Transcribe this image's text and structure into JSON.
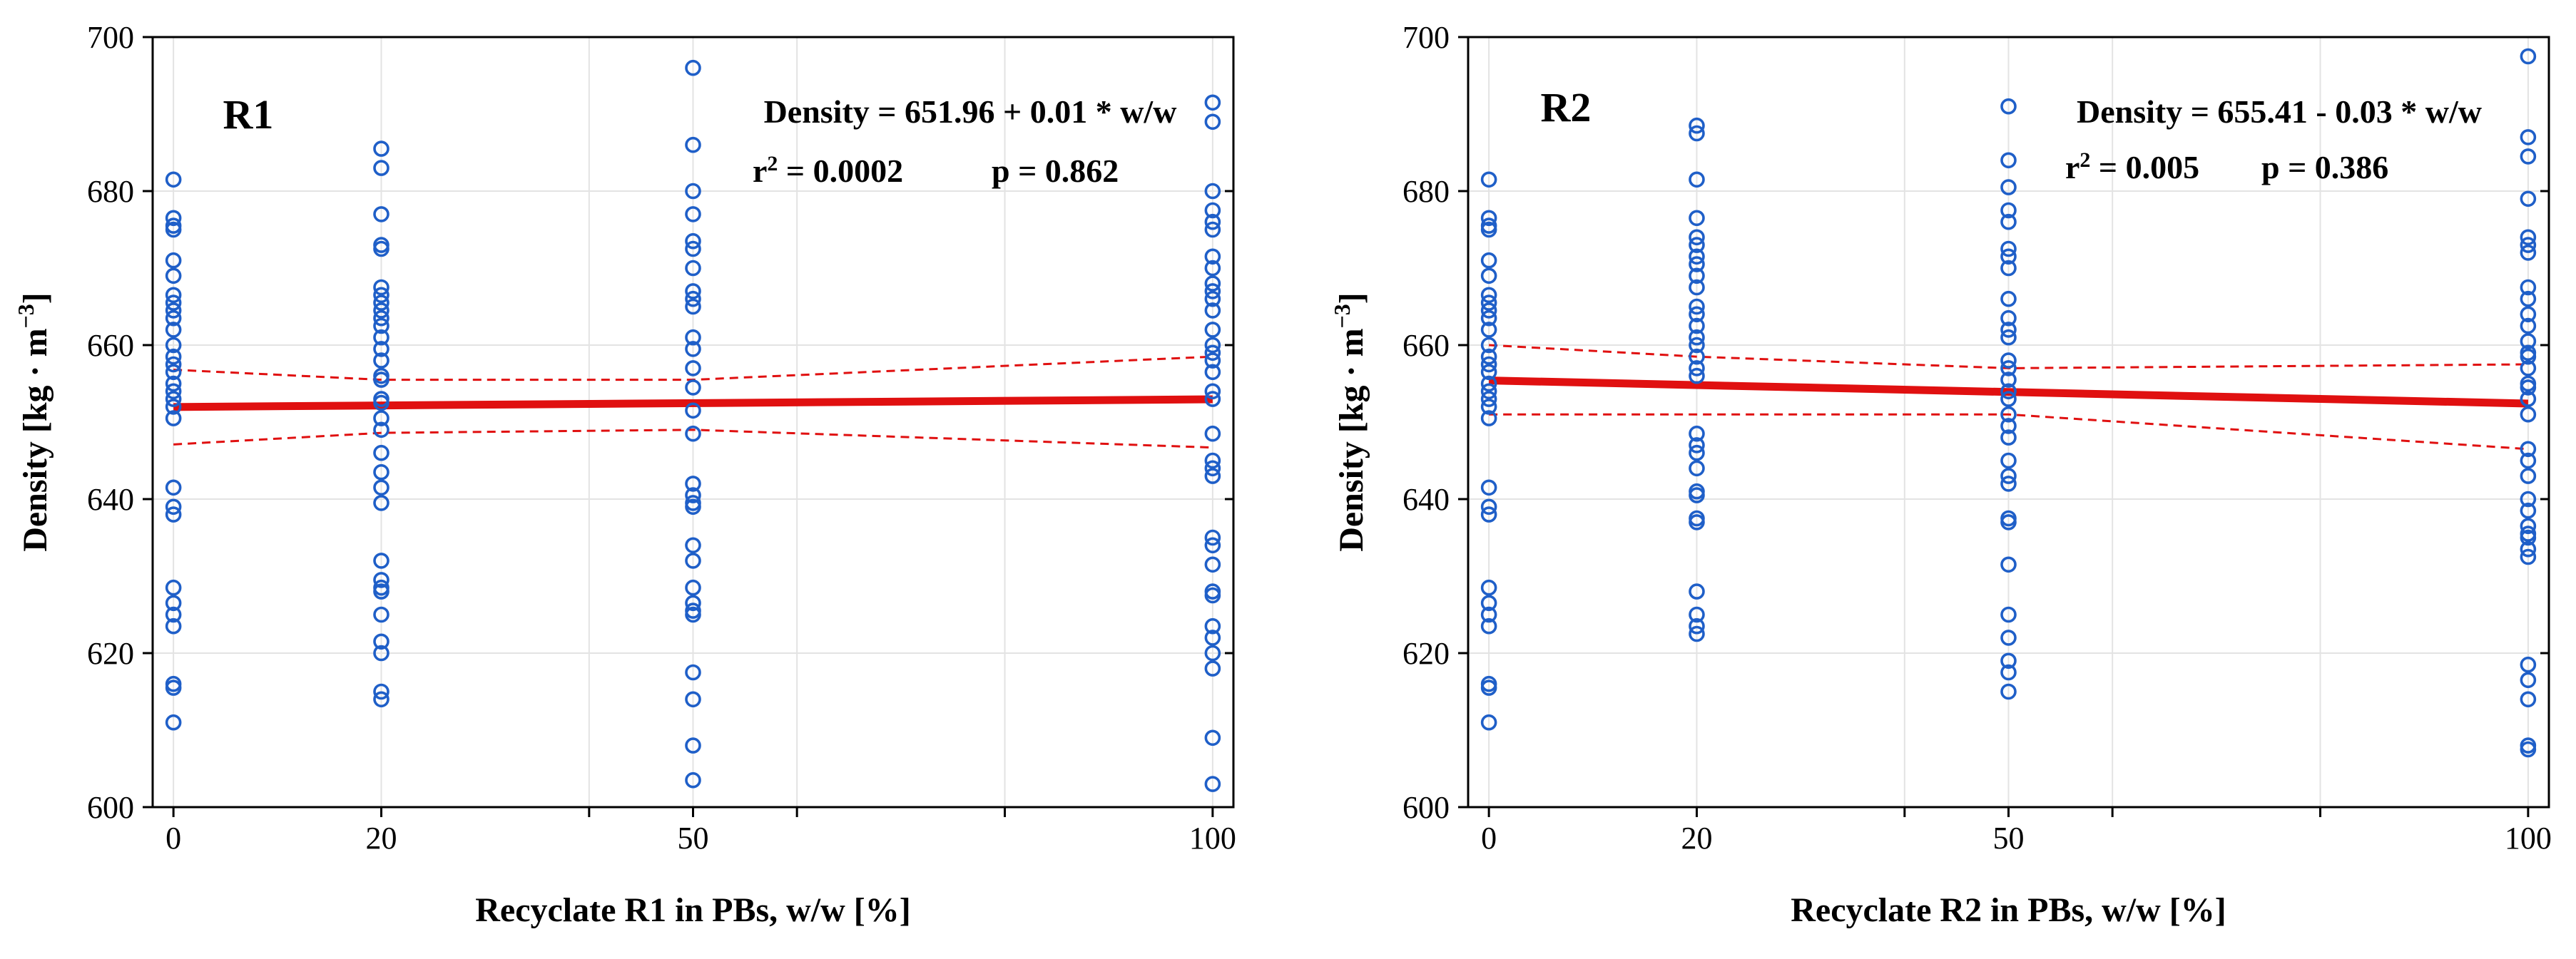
{
  "chart_data": [
    {
      "type": "scatter",
      "panel_label": "R1",
      "equation": "Density = 651.96 + 0.01 * w/w",
      "r2_label": "r",
      "r2_exp": "2",
      "r2_value": " = 0.0002",
      "p_label": "p = 0.862",
      "xlabel": "Recyclate R1 in PBs, w/w  [%]",
      "ylabel": "Density  [kg · m",
      "ylabel_exp": "−3",
      "ylabel_close": "]",
      "xlim": [
        -2,
        102
      ],
      "ylim": [
        600,
        700
      ],
      "xticks": [
        0,
        20,
        50,
        100
      ],
      "xtick_labels": [
        "0",
        "20",
        "50",
        "100"
      ],
      "yticks": [
        600,
        620,
        640,
        660,
        680,
        700
      ],
      "ytick_labels": [
        "600",
        "620",
        "640",
        "660",
        "680",
        "700"
      ],
      "minor_xticks": [
        40,
        60,
        80
      ],
      "grid": true,
      "fit": {
        "intercept": 651.96,
        "slope": 0.01,
        "x_range": [
          0,
          100
        ]
      },
      "confidence_band": {
        "x": [
          0,
          20,
          50,
          100
        ],
        "lower": [
          647.1,
          648.6,
          649.0,
          646.7
        ],
        "upper": [
          656.8,
          655.5,
          655.5,
          658.5
        ]
      },
      "x": [
        0,
        20,
        50,
        100
      ],
      "groups": [
        [
          681.5,
          676.5,
          675.5,
          675.0,
          671.0,
          669.0,
          666.5,
          665.5,
          664.5,
          663.5,
          662.0,
          660.0,
          658.5,
          657.5,
          656.5,
          655.0,
          654.0,
          653.0,
          652.0,
          650.5,
          641.5,
          639.0,
          638.0,
          628.5,
          626.5,
          625.0,
          623.5,
          616.0,
          615.5,
          611.0
        ],
        [
          685.5,
          683.0,
          677.0,
          673.0,
          672.5,
          667.5,
          666.5,
          665.5,
          664.5,
          663.5,
          662.5,
          661.0,
          659.5,
          658.0,
          656.0,
          655.5,
          653.0,
          652.5,
          650.5,
          649.0,
          646.0,
          643.5,
          641.5,
          639.5,
          632.0,
          629.5,
          628.5,
          628.0,
          625.0,
          621.5,
          620.0,
          615.0,
          614.0
        ],
        [
          696.0,
          686.0,
          680.0,
          677.0,
          673.5,
          672.5,
          670.0,
          667.0,
          666.0,
          665.0,
          661.0,
          659.5,
          657.0,
          654.5,
          651.5,
          648.5,
          642.0,
          640.5,
          639.5,
          639.0,
          634.0,
          632.0,
          628.5,
          626.5,
          625.5,
          625.0,
          617.5,
          614.0,
          608.0,
          603.5
        ],
        [
          691.5,
          689.0,
          680.0,
          677.5,
          676.0,
          675.0,
          671.5,
          670.0,
          668.0,
          667.0,
          666.0,
          664.5,
          662.0,
          660.0,
          659.0,
          658.0,
          656.5,
          654.0,
          653.0,
          648.5,
          645.0,
          644.0,
          643.0,
          635.0,
          634.0,
          631.5,
          628.0,
          627.5,
          623.5,
          622.0,
          620.0,
          618.0,
          609.0,
          603.0
        ]
      ]
    },
    {
      "type": "scatter",
      "panel_label": "R2",
      "equation": "Density = 655.41 - 0.03 * w/w",
      "r2_label": "r",
      "r2_exp": "2",
      "r2_value": " = 0.005",
      "p_label": "p = 0.386",
      "xlabel": "Recyclate R2 in PBs, w/w  [%]",
      "ylabel": "Density  [kg · m",
      "ylabel_exp": "−3",
      "ylabel_close": "]",
      "xlim": [
        -2,
        102
      ],
      "ylim": [
        600,
        700
      ],
      "xticks": [
        0,
        20,
        50,
        100
      ],
      "xtick_labels": [
        "0",
        "20",
        "50",
        "100"
      ],
      "yticks": [
        600,
        620,
        640,
        660,
        680,
        700
      ],
      "ytick_labels": [
        "600",
        "620",
        "640",
        "660",
        "680",
        "700"
      ],
      "minor_xticks": [
        40,
        60,
        80
      ],
      "grid": true,
      "fit": {
        "intercept": 655.41,
        "slope": -0.03,
        "x_range": [
          0,
          100
        ]
      },
      "confidence_band": {
        "x": [
          0,
          20,
          50,
          100
        ],
        "lower": [
          651.0,
          651.0,
          651.0,
          646.5
        ],
        "upper": [
          660.0,
          658.5,
          657.0,
          657.5
        ]
      },
      "x": [
        0,
        20,
        50,
        100
      ],
      "groups": [
        [
          681.5,
          676.5,
          675.5,
          675.0,
          671.0,
          669.0,
          666.5,
          665.5,
          664.5,
          663.5,
          662.0,
          660.0,
          658.5,
          657.5,
          656.5,
          655.0,
          654.0,
          653.0,
          652.0,
          650.5,
          641.5,
          639.0,
          638.0,
          628.5,
          626.5,
          625.0,
          623.5,
          616.0,
          615.5,
          611.0
        ],
        [
          688.5,
          687.5,
          681.5,
          676.5,
          674.0,
          673.0,
          671.5,
          670.5,
          669.0,
          667.5,
          665.0,
          664.0,
          662.5,
          661.0,
          660.0,
          658.5,
          657.0,
          656.0,
          648.5,
          647.0,
          646.0,
          644.0,
          641.0,
          640.5,
          637.5,
          637.0,
          628.0,
          625.0,
          623.5,
          622.5
        ],
        [
          691.0,
          684.0,
          680.5,
          677.5,
          676.0,
          672.5,
          671.5,
          670.0,
          666.0,
          663.5,
          662.0,
          661.0,
          658.0,
          657.0,
          655.5,
          654.0,
          653.0,
          651.0,
          649.5,
          648.0,
          645.0,
          643.0,
          642.0,
          637.5,
          637.0,
          631.5,
          625.0,
          622.0,
          619.0,
          617.5,
          615.0
        ],
        [
          697.5,
          687.0,
          684.5,
          679.0,
          674.0,
          673.0,
          672.0,
          667.5,
          666.0,
          664.0,
          662.5,
          660.5,
          659.0,
          658.5,
          657.0,
          655.0,
          654.5,
          653.0,
          651.0,
          646.5,
          645.0,
          643.0,
          640.0,
          638.5,
          636.5,
          635.5,
          635.0,
          633.5,
          632.5,
          618.5,
          616.5,
          614.0,
          608.0,
          607.5
        ]
      ]
    }
  ],
  "colors": {
    "marker": "#1f5fc8",
    "fit_line": "#e01010",
    "band": "#e01010",
    "grid": "#e3e3e3",
    "axis": "#000000"
  }
}
